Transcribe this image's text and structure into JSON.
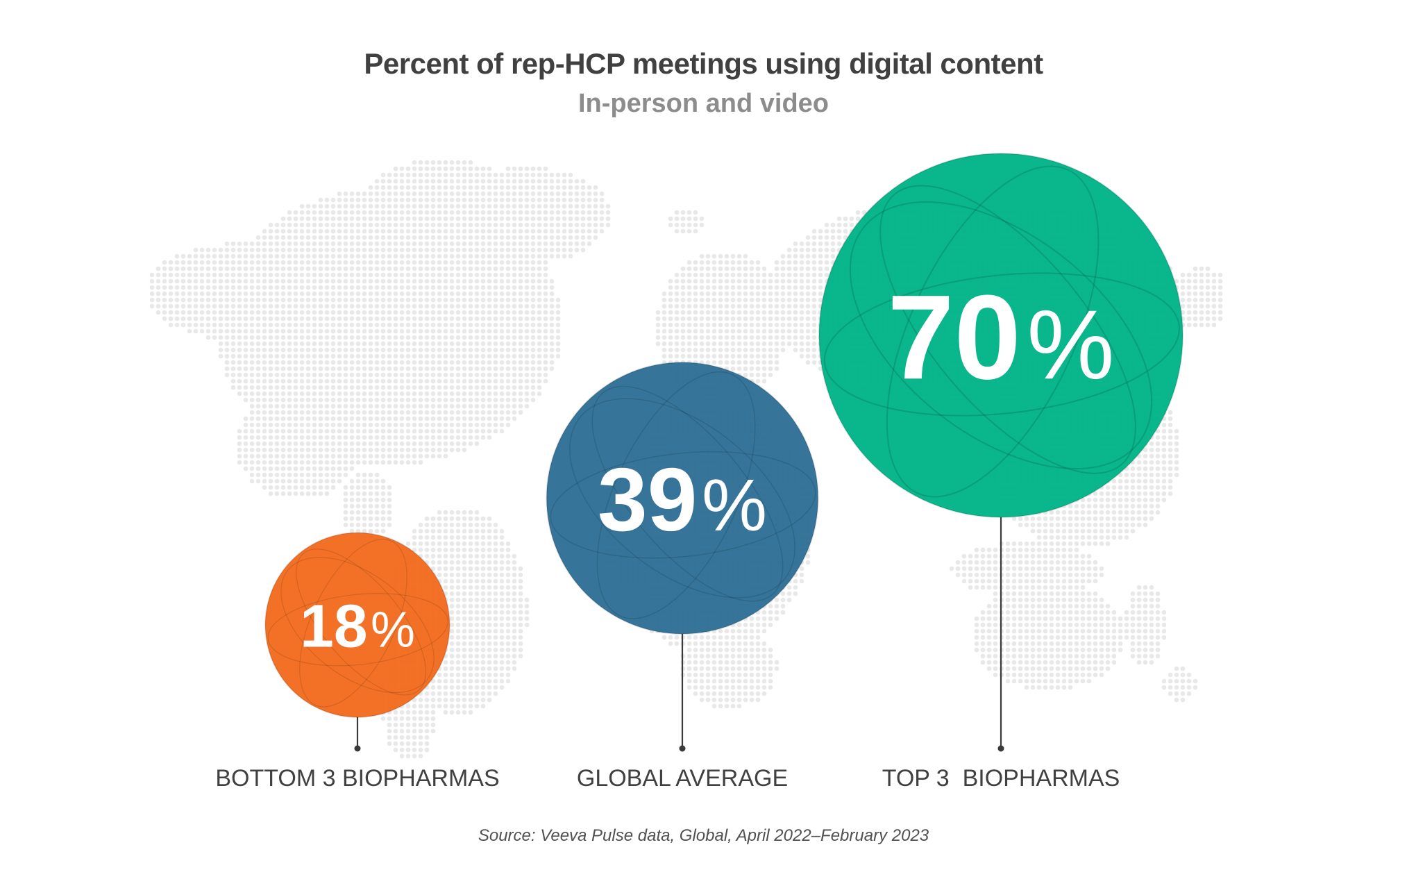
{
  "chart_data": {
    "type": "bubble",
    "title": "Percent of rep-HCP meetings using digital content",
    "subtitle": "In-person and video",
    "source": "Source: Veeva Pulse data, Global, April 2022–February 2023",
    "categories": [
      "BOTTOM 3 BIOPHARMAS",
      "GLOBAL AVERAGE",
      "TOP 3  BIOPHARMAS"
    ],
    "values": [
      18,
      39,
      70
    ],
    "value_labels": [
      "18",
      "39",
      "70"
    ],
    "unit_symbol": "%",
    "colors": [
      "#f26b1d",
      "#2e6f95",
      "#00b386"
    ],
    "background": "world-map-dots",
    "grid": false,
    "legend": "none"
  }
}
